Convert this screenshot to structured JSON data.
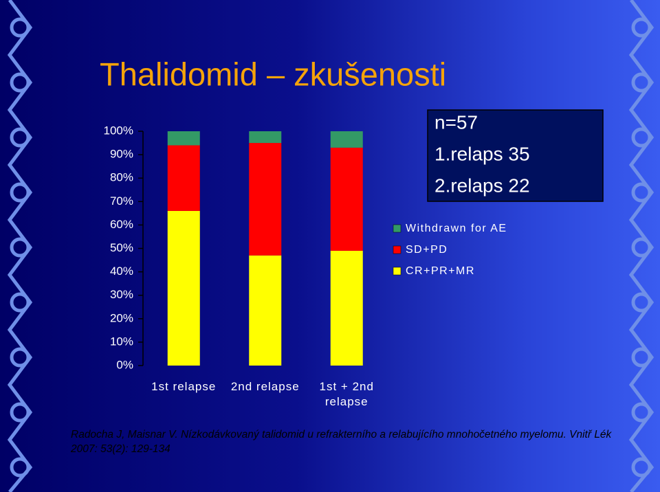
{
  "chart_data": {
    "type": "bar",
    "stacked": true,
    "title": "Thalidomid – zkušenosti",
    "categories": [
      "1st relapse",
      "2nd relapse",
      "1st + 2nd relapse"
    ],
    "series": [
      {
        "name": "CR+PR+MR",
        "color": "#ffff00",
        "values": [
          66,
          47,
          49
        ]
      },
      {
        "name": "SD+PD",
        "color": "#ff0000",
        "values": [
          28,
          48,
          44
        ]
      },
      {
        "name": "Withdrawn for AE",
        "color": "#339966",
        "values": [
          6,
          5,
          7
        ]
      }
    ],
    "ylim": [
      0,
      100
    ],
    "yticks": [
      {
        "value": 0,
        "label": "0%"
      },
      {
        "value": 10,
        "label": "10%"
      },
      {
        "value": 20,
        "label": "20%"
      },
      {
        "value": 30,
        "label": "30%"
      },
      {
        "value": 40,
        "label": "40%"
      },
      {
        "value": 50,
        "label": "50%"
      },
      {
        "value": 60,
        "label": "60%"
      },
      {
        "value": 70,
        "label": "70%"
      },
      {
        "value": 80,
        "label": "80%"
      },
      {
        "value": 90,
        "label": "90%"
      },
      {
        "value": 100,
        "label": "100%"
      }
    ],
    "annotations": [
      "n=57",
      "1.relaps 35",
      "2.relaps 22"
    ],
    "source": "Radocha J, Maisnar V. Nízkodávkovaný talidomid u refrakterního a relabujícího mnohočetného myelomu. Vnitř Lék 2007: 53(2): 129-134"
  }
}
